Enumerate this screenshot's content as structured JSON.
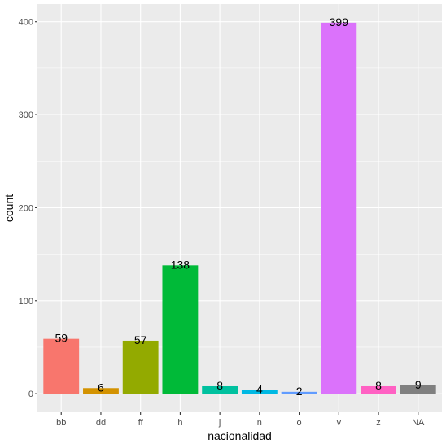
{
  "chart_data": {
    "type": "bar",
    "categories": [
      "bb",
      "dd",
      "ff",
      "h",
      "j",
      "n",
      "o",
      "v",
      "z",
      "NA"
    ],
    "values": [
      59,
      6,
      57,
      138,
      8,
      4,
      2,
      399,
      8,
      9
    ],
    "labels": [
      "59",
      "6",
      "57",
      "138",
      "8",
      "4",
      "2",
      "399",
      "8",
      "9"
    ],
    "colors": [
      "#F8766D",
      "#D39200",
      "#93AA00",
      "#00BA38",
      "#00C19F",
      "#00B9E3",
      "#619CFF",
      "#DB72FB",
      "#FF61C3",
      "#808080"
    ],
    "xlabel": "nacionalidad",
    "ylabel": "count",
    "ylim": [
      -20,
      419
    ],
    "yticks": [
      0,
      100,
      200,
      300,
      400
    ],
    "ytick_labels": [
      "0",
      "100",
      "200",
      "300",
      "400"
    ],
    "grid": true,
    "panel_background": "#EBEBEB",
    "grid_color": "#FFFFFF"
  }
}
